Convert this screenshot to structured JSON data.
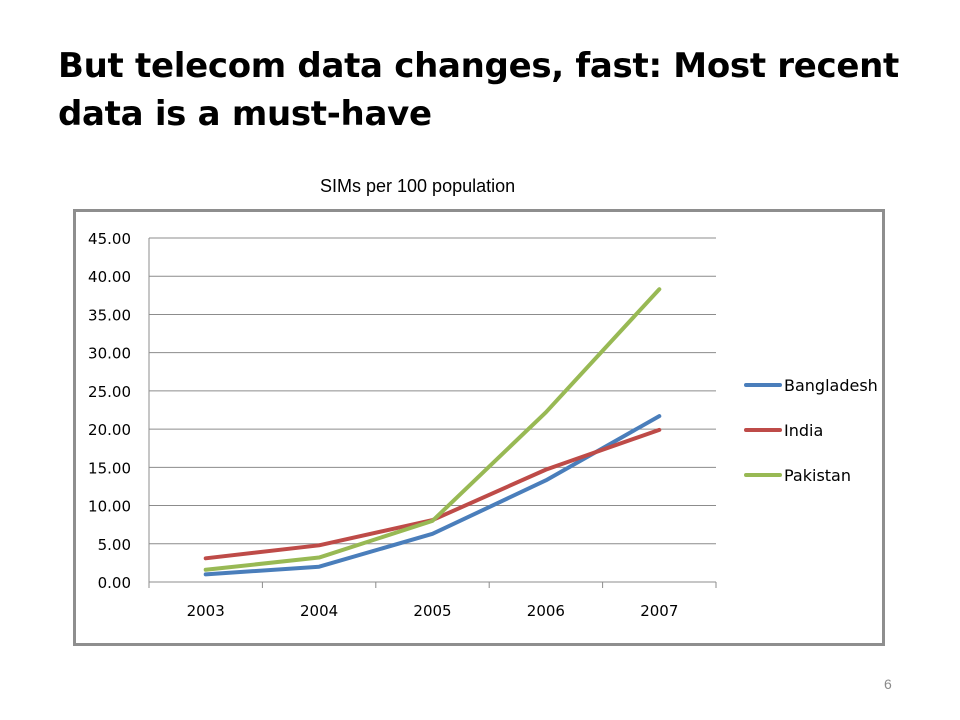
{
  "slide": {
    "title": "But telecom data  changes, fast:  Most recent data is a must-have",
    "chart_caption": "SIMs per 100 population",
    "page_number": "6"
  },
  "colors": {
    "grid": "#8c8c8c",
    "frame": "#8e8e8e",
    "text": "#000000",
    "page_number": "#8a8a8a"
  },
  "chart_data": {
    "type": "line",
    "title": "SIMs per 100 population",
    "xlabel": "",
    "ylabel": "",
    "categories": [
      "2003",
      "2004",
      "2005",
      "2006",
      "2007"
    ],
    "series": [
      {
        "name": "Bangladesh",
        "color": "#4a7ebb",
        "values": [
          1.0,
          2.0,
          6.3,
          13.3,
          21.7
        ]
      },
      {
        "name": "India",
        "color": "#be4b48",
        "values": [
          3.1,
          4.8,
          8.1,
          14.7,
          19.9
        ]
      },
      {
        "name": "Pakistan",
        "color": "#98b954",
        "values": [
          1.6,
          3.2,
          8.0,
          22.2,
          38.3
        ]
      }
    ],
    "ylim": [
      0,
      45
    ],
    "yticks": [
      "0.00",
      "5.00",
      "10.00",
      "15.00",
      "20.00",
      "25.00",
      "30.00",
      "35.00",
      "40.00",
      "45.00"
    ],
    "grid": true,
    "legend_position": "right"
  }
}
